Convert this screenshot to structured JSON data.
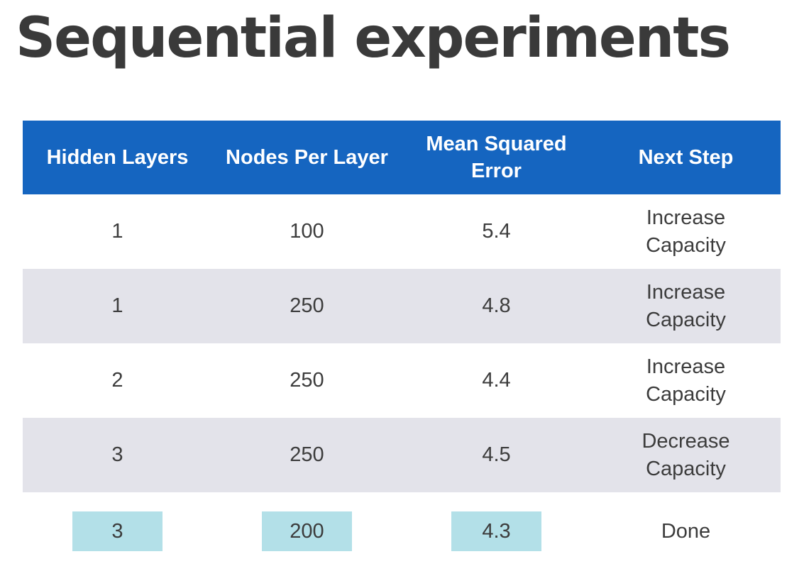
{
  "slide": {
    "title": "Sequential experiments"
  },
  "table": {
    "headers": {
      "hidden_layers": "Hidden Layers",
      "nodes_per_layer": "Nodes Per Layer",
      "mse_line1": "Mean Squared",
      "mse_line2": "Error",
      "next_step": "Next Step"
    },
    "rows": [
      {
        "hidden_layers": "1",
        "nodes_per_layer": "100",
        "mse": "5.4",
        "next_step": "Increase Capacity"
      },
      {
        "hidden_layers": "1",
        "nodes_per_layer": "250",
        "mse": "4.8",
        "next_step": "Increase Capacity"
      },
      {
        "hidden_layers": "2",
        "nodes_per_layer": "250",
        "mse": "4.4",
        "next_step": "Increase Capacity"
      },
      {
        "hidden_layers": "3",
        "nodes_per_layer": "250",
        "mse": "4.5",
        "next_step": "Decrease Capacity"
      },
      {
        "hidden_layers": "3",
        "nodes_per_layer": "200",
        "mse": "4.3",
        "next_step": "Done"
      }
    ]
  },
  "colors": {
    "header_bg": "#1565c0",
    "stripe_bg": "#e3e3ea",
    "highlight_bg": "#b3e0e8",
    "title_text": "#3a3a3a"
  }
}
